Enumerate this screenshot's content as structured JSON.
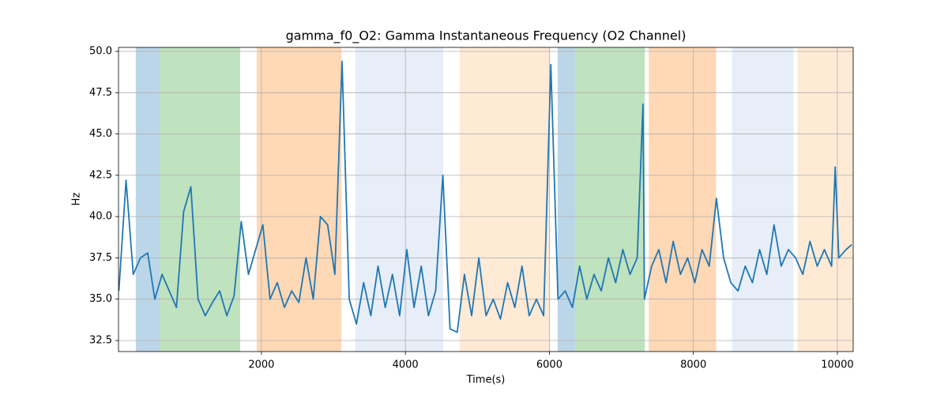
{
  "chart_data": {
    "type": "line",
    "title": "gamma_f0_O2: Gamma Instantaneous Frequency (O2 Channel)",
    "xlabel": "Time(s)",
    "ylabel": "Hz",
    "x": [
      20,
      120,
      220,
      320,
      420,
      520,
      620,
      720,
      820,
      920,
      1020,
      1120,
      1220,
      1320,
      1420,
      1520,
      1620,
      1720,
      1820,
      1920,
      2020,
      2120,
      2220,
      2320,
      2420,
      2520,
      2620,
      2720,
      2820,
      2920,
      3020,
      3120,
      3220,
      3320,
      3420,
      3520,
      3620,
      3720,
      3820,
      3920,
      4020,
      4120,
      4220,
      4320,
      4420,
      4520,
      4620,
      4720,
      4820,
      4920,
      5020,
      5120,
      5220,
      5320,
      5420,
      5520,
      5620,
      5720,
      5820,
      5920,
      6020,
      6120,
      6220,
      6320,
      6420,
      6520,
      6620,
      6720,
      6820,
      6920,
      7020,
      7120,
      7220,
      7300,
      7320,
      7420,
      7520,
      7620,
      7720,
      7820,
      7920,
      8020,
      8120,
      8220,
      8320,
      8420,
      8520,
      8620,
      8720,
      8820,
      8920,
      9020,
      9120,
      9220,
      9320,
      9420,
      9520,
      9620,
      9720,
      9820,
      9920,
      9970,
      10020,
      10120,
      10200
    ],
    "series": [
      {
        "color": "#1f77b4",
        "values": [
          35.5,
          42.2,
          36.5,
          37.5,
          37.8,
          35.0,
          36.5,
          35.5,
          34.5,
          40.3,
          41.8,
          35.0,
          34.0,
          34.8,
          35.5,
          34.0,
          35.2,
          39.7,
          36.5,
          38.0,
          39.5,
          35.0,
          36.0,
          34.5,
          35.5,
          34.8,
          37.5,
          35.0,
          40.0,
          39.5,
          36.5,
          49.4,
          35.0,
          33.5,
          36.0,
          34.0,
          37.0,
          34.5,
          36.5,
          34.0,
          38.0,
          34.5,
          37.0,
          34.0,
          35.5,
          42.5,
          33.2,
          33.0,
          36.5,
          34.0,
          37.5,
          34.0,
          35.0,
          33.8,
          36.0,
          34.5,
          37.0,
          34.0,
          35.0,
          34.0,
          49.2,
          35.0,
          35.5,
          34.5,
          37.0,
          35.0,
          36.5,
          35.5,
          37.5,
          36.0,
          38.0,
          36.5,
          37.5,
          46.8,
          35.0,
          37.0,
          38.0,
          36.0,
          38.5,
          36.5,
          37.5,
          36.0,
          38.0,
          37.0,
          41.1,
          37.5,
          36.0,
          35.5,
          37.0,
          36.0,
          38.0,
          36.5,
          39.5,
          37.0,
          38.0,
          37.5,
          36.5,
          38.5,
          37.0,
          38.0,
          37.0,
          43.0,
          37.5,
          38.0,
          38.3
        ]
      }
    ],
    "spans": [
      {
        "x": [
          255,
          585
        ],
        "color": "#1f77b4"
      },
      {
        "x": [
          585,
          1705
        ],
        "color": "#2ca02c"
      },
      {
        "x": [
          1935,
          3110
        ],
        "color": "#ff7f0e"
      },
      {
        "x": [
          3305,
          4525
        ],
        "color": "#aec7e8"
      },
      {
        "x": [
          4755,
          6010
        ],
        "color": "#ffbb78"
      },
      {
        "x": [
          6115,
          6355
        ],
        "color": "#1f77b4"
      },
      {
        "x": [
          6355,
          7325
        ],
        "color": "#2ca02c"
      },
      {
        "x": [
          7380,
          8315
        ],
        "color": "#ff7f0e"
      },
      {
        "x": [
          8535,
          9390
        ],
        "color": "#aec7e8"
      },
      {
        "x": [
          9445,
          10220
        ],
        "color": "#ffbb78"
      }
    ],
    "span_alpha": 0.3,
    "xlim": [
      15,
      10220
    ],
    "ylim": [
      31.83,
      50.24
    ],
    "xticks": [
      2000,
      4000,
      6000,
      8000,
      10000
    ],
    "yticks": [
      32.5,
      {
        "value": 35.0,
        "label": "35.0"
      },
      37.5,
      {
        "value": 40.0,
        "label": "40.0"
      },
      42.5,
      {
        "value": 45.0,
        "label": "45.0"
      },
      47.5,
      {
        "value": 50.0,
        "label": "50.0"
      }
    ],
    "grid": true
  }
}
